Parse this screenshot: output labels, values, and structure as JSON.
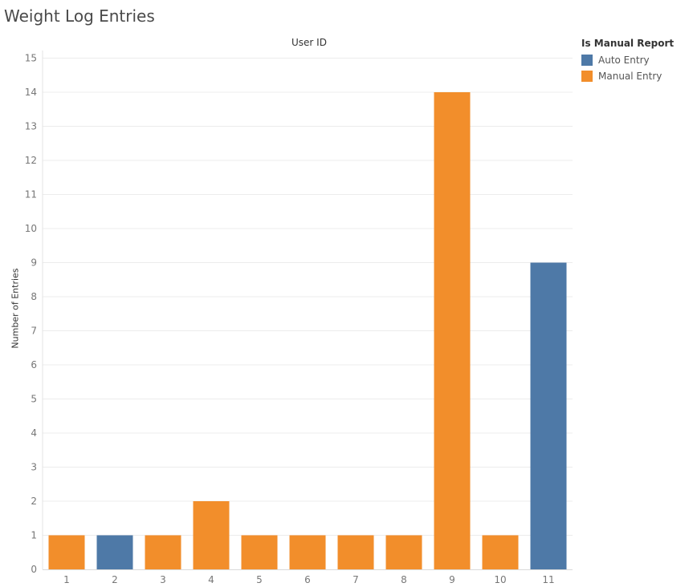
{
  "chart_data": {
    "type": "bar",
    "title": "Weight Log Entries",
    "column_header": "User ID",
    "ylabel": "Number of Entries",
    "categories": [
      "1",
      "2",
      "3",
      "4",
      "5",
      "6",
      "7",
      "8",
      "9",
      "10",
      "11"
    ],
    "values": [
      1,
      1,
      1,
      2,
      1,
      1,
      1,
      1,
      14,
      1,
      9
    ],
    "entry_type": [
      "Manual Entry",
      "Auto Entry",
      "Manual Entry",
      "Manual Entry",
      "Manual Entry",
      "Manual Entry",
      "Manual Entry",
      "Manual Entry",
      "Manual Entry",
      "Manual Entry",
      "Auto Entry"
    ],
    "ylim": [
      0,
      15
    ],
    "yticks": [
      0,
      1,
      2,
      3,
      4,
      5,
      6,
      7,
      8,
      9,
      10,
      11,
      12,
      13,
      14,
      15
    ],
    "grid": true,
    "legend": {
      "title": "Is Manual Report",
      "placement": "right",
      "items": [
        {
          "label": "Auto Entry",
          "color": "#4e79a7"
        },
        {
          "label": "Manual Entry",
          "color": "#f28e2b"
        }
      ]
    }
  }
}
